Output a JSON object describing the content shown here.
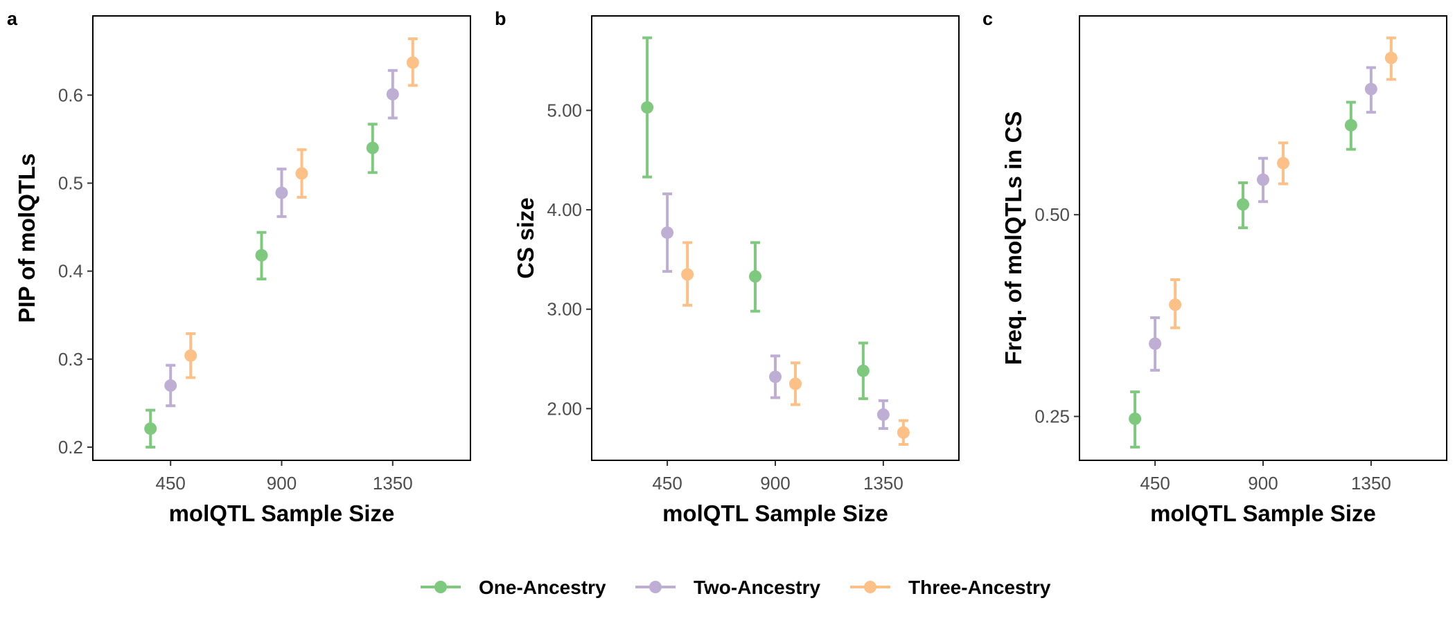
{
  "colors": {
    "one_ancestry": "#7fc97f",
    "two_ancestry": "#beaed4",
    "three_ancestry": "#fdc086"
  },
  "legend": [
    {
      "label": "One-Ancestry",
      "color": "#7fc97f"
    },
    {
      "label": "Two-Ancestry",
      "color": "#beaed4"
    },
    {
      "label": "Three-Ancestry",
      "color": "#fdc086"
    }
  ],
  "chart_data": [
    {
      "type": "scatter",
      "panel": "a",
      "xlabel": "molQTL Sample Size",
      "ylabel": "PIP of molQTLs",
      "categories": [
        "450",
        "900",
        "1350"
      ],
      "y_ticks": [
        0.2,
        0.3,
        0.4,
        0.5,
        0.6
      ],
      "y_tick_labels": [
        "0.2",
        "0.3",
        "0.4",
        "0.5",
        "0.6"
      ],
      "ylim": [
        0.185,
        0.69
      ],
      "y_scale": "linear",
      "grid": false,
      "series": [
        {
          "name": "One-Ancestry",
          "values": [
            0.221,
            0.418,
            0.54
          ],
          "lower": [
            0.2,
            0.391,
            0.512
          ],
          "upper": [
            0.242,
            0.444,
            0.567
          ]
        },
        {
          "name": "Two-Ancestry",
          "values": [
            0.27,
            0.489,
            0.601
          ],
          "lower": [
            0.247,
            0.462,
            0.574
          ],
          "upper": [
            0.293,
            0.516,
            0.628
          ]
        },
        {
          "name": "Three-Ancestry",
          "values": [
            0.304,
            0.511,
            0.637
          ],
          "lower": [
            0.279,
            0.484,
            0.611
          ],
          "upper": [
            0.329,
            0.538,
            0.664
          ]
        }
      ]
    },
    {
      "type": "scatter",
      "panel": "b",
      "xlabel": "molQTL Sample Size",
      "ylabel": "CS size",
      "categories": [
        "450",
        "900",
        "1350"
      ],
      "y_ticks": [
        2,
        3,
        4,
        5
      ],
      "y_tick_labels": [
        "2.00",
        "3.00",
        "4.00",
        "5.00"
      ],
      "ylim": [
        1.48,
        5.95
      ],
      "y_scale": "linear",
      "grid": false,
      "series": [
        {
          "name": "One-Ancestry",
          "values": [
            5.03,
            3.33,
            2.38
          ],
          "lower": [
            4.33,
            2.98,
            2.1
          ],
          "upper": [
            5.73,
            3.67,
            2.66
          ]
        },
        {
          "name": "Two-Ancestry",
          "values": [
            3.77,
            2.32,
            1.94
          ],
          "lower": [
            3.38,
            2.11,
            1.8
          ],
          "upper": [
            4.16,
            2.53,
            2.08
          ]
        },
        {
          "name": "Three-Ancestry",
          "values": [
            3.35,
            2.25,
            1.76
          ],
          "lower": [
            3.04,
            2.04,
            1.64
          ],
          "upper": [
            3.67,
            2.46,
            1.88
          ]
        }
      ]
    },
    {
      "type": "scatter",
      "panel": "c",
      "xlabel": "molQTL Sample Size",
      "ylabel": "Freq. of molQTLs in CS",
      "categories": [
        "450",
        "900",
        "1350"
      ],
      "y_ticks": [
        0.25,
        0.5
      ],
      "y_tick_labels": [
        "0.25",
        "0.50"
      ],
      "ylim": [
        0.215,
        0.99
      ],
      "y_scale": "log",
      "grid": false,
      "series": [
        {
          "name": "One-Ancestry",
          "values": [
            0.248,
            0.518,
            0.68
          ],
          "lower": [
            0.225,
            0.478,
            0.626
          ],
          "upper": [
            0.272,
            0.558,
            0.736
          ]
        },
        {
          "name": "Two-Ancestry",
          "values": [
            0.321,
            0.564,
            0.77
          ],
          "lower": [
            0.293,
            0.523,
            0.711
          ],
          "upper": [
            0.351,
            0.607,
            0.829
          ]
        },
        {
          "name": "Three-Ancestry",
          "values": [
            0.367,
            0.597,
            0.857
          ],
          "lower": [
            0.339,
            0.556,
            0.796
          ],
          "upper": [
            0.4,
            0.64,
            0.918
          ]
        }
      ]
    }
  ]
}
